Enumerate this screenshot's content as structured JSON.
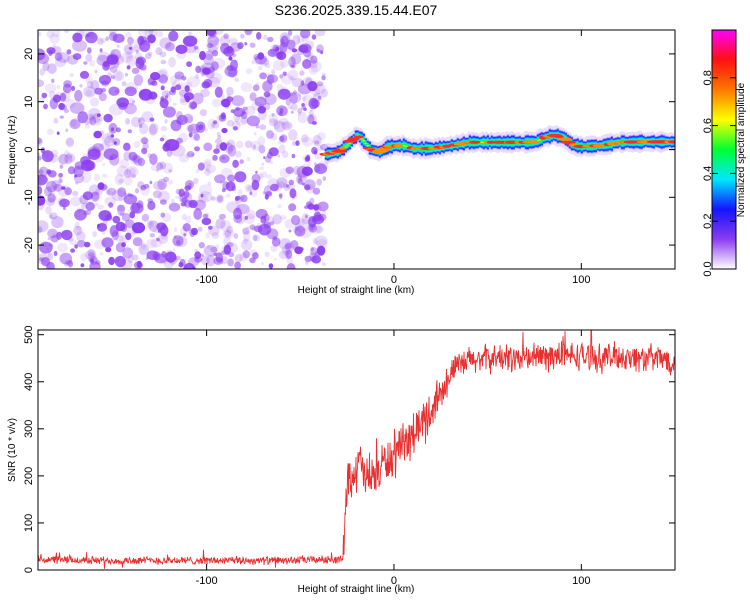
{
  "title": "S236.2025.339.15.44.E07",
  "colors": {
    "noise": "#8a3cf0",
    "signal_line": "#e83232",
    "axis": "#000000"
  },
  "chart_data": [
    {
      "type": "heatmap",
      "name": "spectrogram",
      "xlabel": "Height of straight line (km)",
      "ylabel": "Frequency (Hz)",
      "xlim": [
        -190,
        150
      ],
      "ylim": [
        -25,
        25
      ],
      "xticks": [
        -100,
        0,
        100
      ],
      "xtick_labels": [
        "-100",
        "0",
        "100"
      ],
      "yticks": [
        -20,
        -10,
        0,
        10,
        20
      ],
      "ytick_labels": [
        "-20",
        "-10",
        "0",
        "10",
        "20"
      ],
      "noise_region_x": [
        -190,
        -37
      ],
      "signal_region_x": [
        -37,
        150
      ],
      "signal_ridge": {
        "x": [
          -37,
          -30,
          -25,
          -20,
          -17,
          -13,
          -8,
          -4,
          0,
          5,
          10,
          20,
          30,
          40,
          50,
          60,
          70,
          75,
          80,
          85,
          90,
          95,
          100,
          110,
          120,
          130,
          140,
          150
        ],
        "hz": [
          -1.0,
          -0.5,
          1.0,
          3.0,
          2.0,
          0.0,
          -0.5,
          0.5,
          0.8,
          0.8,
          0.2,
          0.2,
          0.8,
          1.5,
          1.5,
          1.5,
          1.5,
          1.6,
          2.5,
          3.0,
          2.5,
          1.0,
          0.6,
          0.8,
          1.5,
          1.6,
          1.6,
          1.6
        ]
      },
      "colorbar": {
        "label": "Normalized spectral amplitude",
        "range": [
          0.0,
          1.0
        ],
        "ticks": [
          0.0,
          0.2,
          0.4,
          0.6,
          0.8
        ],
        "tick_labels": [
          "0.0",
          "0.2",
          "0.4",
          "0.6",
          "0.8"
        ],
        "stops": [
          "#ffffff",
          "#8a3cf0",
          "#1414ff",
          "#00e8ff",
          "#00ff30",
          "#ffff00",
          "#ff7800",
          "#ff1010",
          "#ff00ff"
        ]
      }
    },
    {
      "type": "line",
      "name": "snr",
      "xlabel": "Height of straight line (km)",
      "ylabel": "SNR (10 * v/v)",
      "xlim": [
        -190,
        150
      ],
      "ylim": [
        0,
        510
      ],
      "xticks": [
        -100,
        0,
        100
      ],
      "xtick_labels": [
        "-100",
        "0",
        "100"
      ],
      "yticks": [
        0,
        100,
        200,
        300,
        400,
        500
      ],
      "ytick_labels": [
        "0",
        "100",
        "200",
        "300",
        "400",
        "500"
      ],
      "series": [
        {
          "name": "SNR",
          "x": [
            -190,
            -150,
            -100,
            -60,
            -40,
            -27,
            -26,
            -24,
            -20,
            -18,
            -15,
            -10,
            -5,
            0,
            5,
            10,
            15,
            20,
            25,
            30,
            40,
            50,
            60,
            70,
            80,
            90,
            100,
            110,
            120,
            130,
            140,
            150
          ],
          "y": [
            22,
            20,
            20,
            20,
            22,
            22,
            160,
            200,
            210,
            230,
            190,
            200,
            230,
            240,
            260,
            290,
            310,
            340,
            380,
            420,
            445,
            450,
            450,
            450,
            455,
            455,
            455,
            450,
            455,
            450,
            450,
            445
          ]
        }
      ]
    }
  ]
}
